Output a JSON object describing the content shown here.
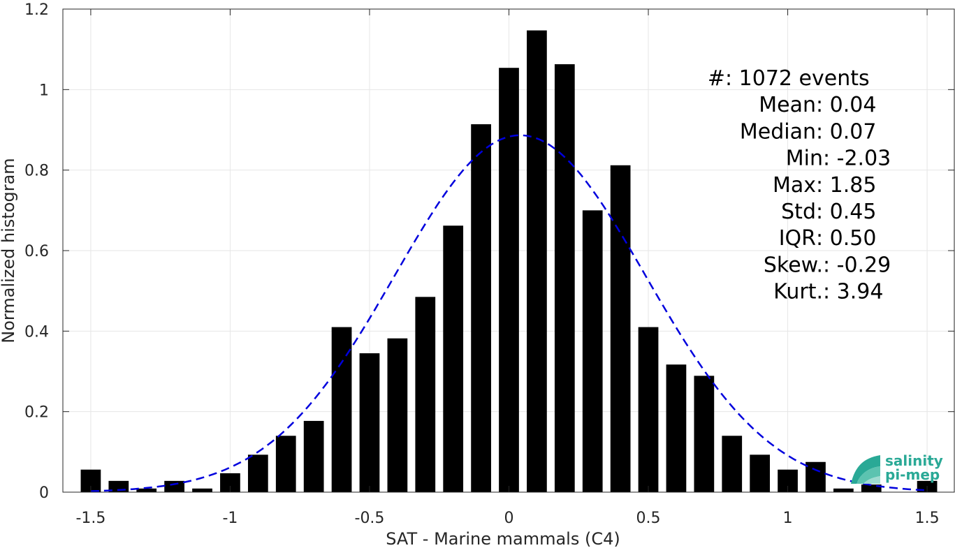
{
  "chart_data": {
    "type": "bar",
    "xlabel": "SAT - Marine mammals (C4)",
    "ylabel": "Normalized histogram",
    "xlim": [
      -1.6,
      1.6
    ],
    "ylim": [
      0,
      1.2
    ],
    "xticks": [
      "-1.5",
      "-1",
      "-0.5",
      "0",
      "0.5",
      "1",
      "1.5"
    ],
    "yticks": [
      "0",
      "0.2",
      "0.4",
      "0.6",
      "0.8",
      "1",
      "1.2"
    ],
    "grid": true,
    "bin_width": 0.1,
    "x": [
      -1.5,
      -1.4,
      -1.3,
      -1.2,
      -1.1,
      -1.0,
      -0.9,
      -0.8,
      -0.7,
      -0.6,
      -0.5,
      -0.4,
      -0.3,
      -0.2,
      -0.1,
      0.0,
      0.1,
      0.2,
      0.3,
      0.4,
      0.5,
      0.6,
      0.7,
      0.8,
      0.9,
      1.0,
      1.1,
      1.2,
      1.3,
      1.4,
      1.5
    ],
    "values": [
      0.056,
      0.028,
      0.009,
      0.028,
      0.009,
      0.047,
      0.093,
      0.14,
      0.177,
      0.41,
      0.345,
      0.382,
      0.485,
      0.662,
      0.914,
      1.054,
      1.147,
      1.063,
      0.7,
      0.812,
      0.41,
      0.317,
      0.289,
      0.14,
      0.093,
      0.056,
      0.075,
      0.009,
      0.019,
      0.0,
      0.028
    ],
    "bar_color": "#000000",
    "fit": {
      "type": "normal",
      "mean": 0.04,
      "std": 0.45,
      "color": "#0000dd",
      "style": "dashed"
    },
    "stats": [
      {
        "label": "#  ",
        "value": ": 1072 events"
      },
      {
        "label": "Mean ",
        "value": ": 0.04"
      },
      {
        "label": "Median ",
        "value": ": 0.07"
      },
      {
        "label": "Min ",
        "value": ": -2.03"
      },
      {
        "label": "Max ",
        "value": ": 1.85"
      },
      {
        "label": "Std ",
        "value": ": 0.45"
      },
      {
        "label": "IQR ",
        "value": ": 0.50"
      },
      {
        "label": "Skew. ",
        "value": ": -0.29"
      },
      {
        "label": "Kurt. ",
        "value": ": 3.94"
      }
    ],
    "logo": {
      "line1": "salinity",
      "line2": "pi-mep",
      "color": "#2aa996"
    }
  }
}
